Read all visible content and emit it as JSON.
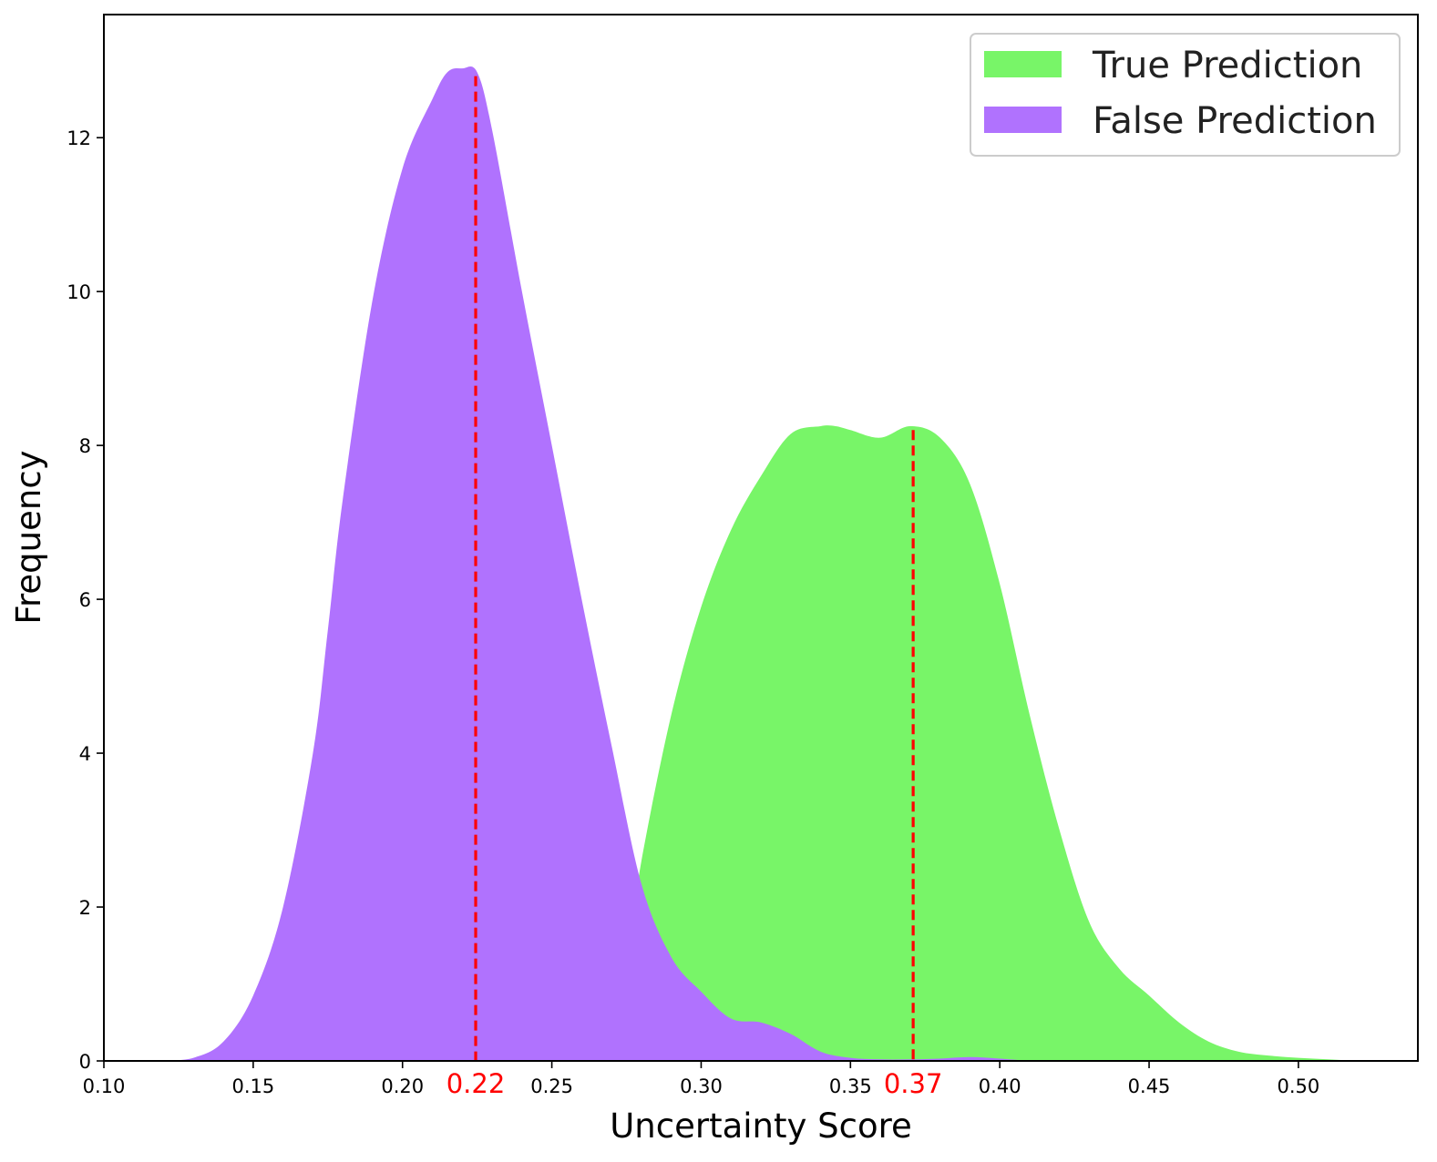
{
  "chart_data": {
    "type": "area",
    "title": "",
    "xlabel": "Uncertainty Score",
    "ylabel": "Frequency",
    "xlim": [
      0.1,
      0.54
    ],
    "ylim": [
      0,
      13.6
    ],
    "xticks": [
      0.1,
      0.15,
      0.2,
      0.25,
      0.3,
      0.35,
      0.4,
      0.45,
      0.5
    ],
    "xtick_labels": [
      "0.10",
      "0.15",
      "0.20",
      "0.25",
      "0.30",
      "0.35",
      "0.40",
      "0.45",
      "0.50"
    ],
    "yticks": [
      0,
      2,
      4,
      6,
      8,
      10,
      12
    ],
    "ytick_labels": [
      "0",
      "2",
      "4",
      "6",
      "8",
      "10",
      "12"
    ],
    "grid": false,
    "legend_position": "top-right",
    "series": [
      {
        "name": "True Prediction",
        "color": "#78f568",
        "x": [
          0.255,
          0.265,
          0.275,
          0.28,
          0.29,
          0.3,
          0.31,
          0.32,
          0.33,
          0.34,
          0.345,
          0.35,
          0.36,
          0.37,
          0.38,
          0.39,
          0.4,
          0.41,
          0.42,
          0.43,
          0.44,
          0.45,
          0.46,
          0.47,
          0.48,
          0.49,
          0.5,
          0.51,
          0.52
        ],
        "y": [
          0.0,
          0.3,
          1.3,
          2.6,
          4.5,
          5.9,
          6.9,
          7.6,
          8.15,
          8.25,
          8.25,
          8.2,
          8.1,
          8.25,
          8.1,
          7.5,
          6.2,
          4.5,
          3.0,
          1.8,
          1.2,
          0.85,
          0.5,
          0.25,
          0.12,
          0.07,
          0.04,
          0.02,
          0.0
        ]
      },
      {
        "name": "False Prediction",
        "color": "#b072fe",
        "x": [
          0.12,
          0.13,
          0.14,
          0.15,
          0.16,
          0.17,
          0.175,
          0.18,
          0.19,
          0.2,
          0.21,
          0.215,
          0.22,
          0.225,
          0.23,
          0.24,
          0.25,
          0.26,
          0.27,
          0.28,
          0.29,
          0.3,
          0.31,
          0.32,
          0.33,
          0.34,
          0.35,
          0.36,
          0.37,
          0.38,
          0.39,
          0.4,
          0.41
        ],
        "y": [
          0.0,
          0.04,
          0.25,
          0.85,
          2.0,
          4.0,
          5.6,
          7.3,
          9.9,
          11.6,
          12.5,
          12.85,
          12.9,
          12.85,
          12.1,
          10.0,
          8.0,
          6.0,
          4.1,
          2.3,
          1.35,
          0.9,
          0.55,
          0.5,
          0.35,
          0.12,
          0.04,
          0.02,
          0.02,
          0.03,
          0.05,
          0.03,
          0.0
        ]
      }
    ],
    "mean_lines": [
      {
        "x": 0.2245,
        "label": "0.22",
        "color": "#ff0000",
        "y_top": 12.8
      },
      {
        "x": 0.371,
        "label": "0.37",
        "color": "#ff0000",
        "y_top": 8.2
      }
    ]
  }
}
